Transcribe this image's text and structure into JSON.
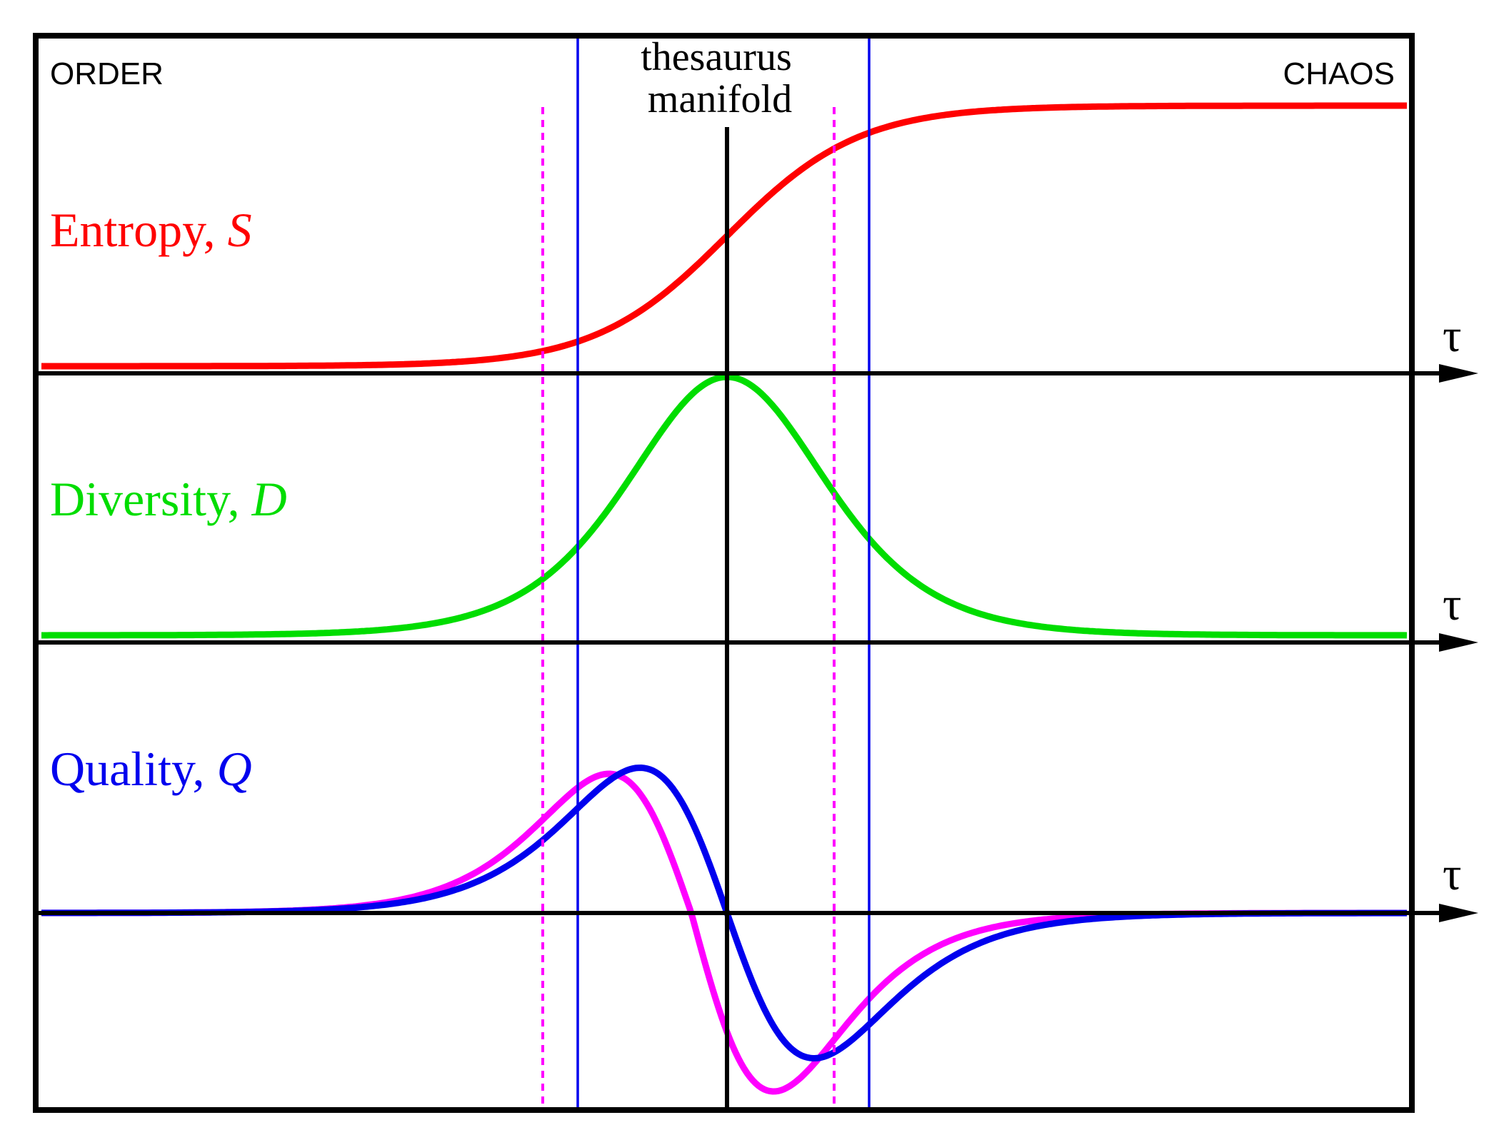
{
  "labels": {
    "order": "ORDER",
    "chaos": "CHAOS",
    "thesaurus_line1": "thesaurus",
    "thesaurus_line2": "manifold",
    "axis_symbol": "τ"
  },
  "panels": {
    "entropy": {
      "name": "Entropy, ",
      "symbol": "S",
      "color": "#ff0000"
    },
    "diversity": {
      "name": "Diversity, ",
      "symbol": "D",
      "color": "#00dd00"
    },
    "quality": {
      "name": "Quality, ",
      "symbol": "Q",
      "color": "#0000ee",
      "second_curve_color": "#ff00ff"
    }
  },
  "markers": {
    "center_color": "#000000",
    "solid_color": "#0000ee",
    "dashed_color": "#ff00ff"
  }
}
